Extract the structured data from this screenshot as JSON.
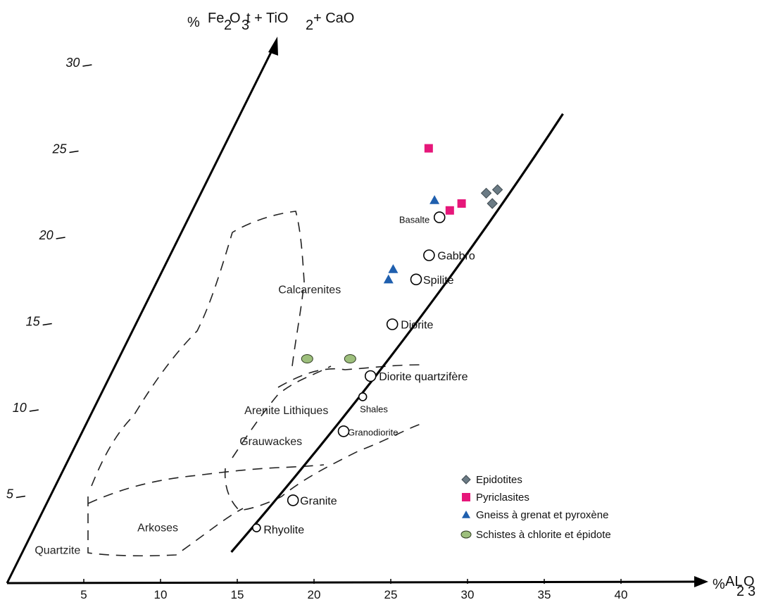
{
  "chart_data": {
    "type": "scatter",
    "title": "",
    "xlabel": "%AL2O3",
    "ylabel": "% Fe2O3t + TiO2 + CaO",
    "xlim": [
      0,
      45
    ],
    "ylim": [
      0,
      35
    ],
    "x_ticks": [
      5,
      10,
      15,
      20,
      25,
      30,
      35,
      40
    ],
    "y_ticks": [
      5,
      10,
      15,
      20,
      25,
      30
    ],
    "axes_note": "oblique axes: the Fe2O3t+TiO2+CaO axis is inclined",
    "grid": false,
    "legend_position": "bottom-right",
    "fields": [
      {
        "name": "Calcarenites",
        "label_at": [
          16.8,
          16.8
        ]
      },
      {
        "name": "Arenite Lithiques",
        "label_at": [
          16.5,
          9.8
        ]
      },
      {
        "name": "Arkoses",
        "label_at": [
          9.3,
          3.0
        ]
      },
      {
        "name": "Quartzite",
        "label_at": [
          3.0,
          1.7
        ]
      },
      {
        "name": "Grauwackes",
        "label_at": [
          15.8,
          8.0
        ]
      }
    ],
    "trend_line": [
      [
        14.3,
        1.8
      ],
      [
        24.2,
        14.2
      ],
      [
        31.5,
        27.2
      ]
    ],
    "rock_types": [
      {
        "name": "Rhyolite",
        "x": 15.7,
        "y": 3.2
      },
      {
        "name": "Granite",
        "x": 17.8,
        "y": 4.8
      },
      {
        "name": "Granodiorite",
        "x": 20.4,
        "y": 8.8
      },
      {
        "name": "Shales",
        "x": 21.3,
        "y": 10.8
      },
      {
        "name": "Diorite quartzifère",
        "x": 21.6,
        "y": 12.0
      },
      {
        "name": "Diorite",
        "x": 22.5,
        "y": 15.0
      },
      {
        "name": "Spilite",
        "x": 23.6,
        "y": 17.6
      },
      {
        "name": "Gabbro",
        "x": 24.2,
        "y": 19.0
      },
      {
        "name": "Basalte",
        "x": 24.5,
        "y": 21.2
      }
    ],
    "series": [
      {
        "name": "Epidotites",
        "marker": "diamond",
        "color": "#6b7b85",
        "points": [
          [
            27.3,
            22.6
          ],
          [
            28.0,
            22.8
          ],
          [
            27.8,
            22.0
          ]
        ]
      },
      {
        "name": "Pyriclasites",
        "marker": "square",
        "color": "#e6177a",
        "points": [
          [
            23.1,
            25.2
          ],
          [
            25.1,
            21.6
          ],
          [
            25.8,
            22.0
          ]
        ]
      },
      {
        "name": "Gneiss à grenat et pyroxène",
        "marker": "triangle",
        "color": "#1f5fae",
        "points": [
          [
            24.0,
            22.2
          ],
          [
            22.0,
            18.2
          ],
          [
            21.8,
            17.6
          ]
        ]
      },
      {
        "name": "Schistes à chlorite et épidote",
        "marker": "ellipse",
        "color": "#9dbf7c",
        "points": [
          [
            17.3,
            13.0
          ],
          [
            20.1,
            13.0
          ]
        ]
      }
    ]
  }
}
